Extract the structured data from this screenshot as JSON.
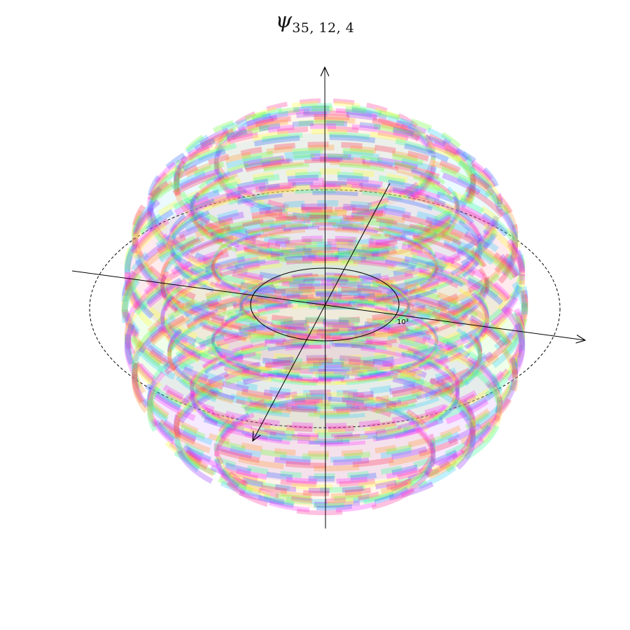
{
  "title": {
    "symbol": "ψ",
    "subscript": "35, 12, 4"
  },
  "axes": {
    "scale_label": "10³"
  },
  "colors": {
    "cycle": [
      "#ff3399",
      "#ff9933",
      "#ffff33",
      "#66ff33",
      "#33ff99",
      "#33ccff",
      "#3366ff",
      "#9933ff",
      "#ff33ff",
      "#ff3355"
    ],
    "axis": "#000000"
  }
}
